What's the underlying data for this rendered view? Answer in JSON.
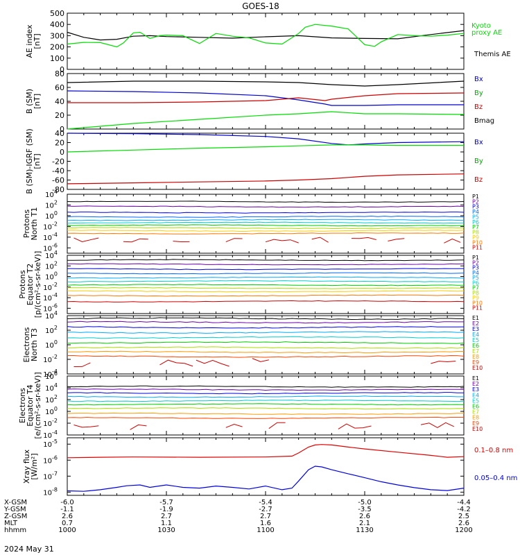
{
  "title": "GOES-18",
  "date_label": "2024 May 31",
  "ephemeris": {
    "row_labels": [
      "X-GSM",
      "Y-GSM",
      "Z-GSM",
      "MLT",
      "hhmm"
    ],
    "columns": [
      [
        "-6.0",
        "-1.1",
        "2.6",
        "0.7",
        "1000"
      ],
      [
        "-5.7",
        "-1.9",
        "2.7",
        "1.1",
        "1030"
      ],
      [
        "-5.4",
        "-2.7",
        "2.7",
        "1.6",
        "1100"
      ],
      [
        "-5.0",
        "-3.5",
        "2.6",
        "2.1",
        "1130"
      ],
      [
        "-4.4",
        "-4.2",
        "2.5",
        "2.6",
        "1200"
      ]
    ]
  },
  "chart_data": [
    {
      "type": "line",
      "id": "ae",
      "ylabel": [
        "AE index",
        "[nT]"
      ],
      "ylim": [
        0,
        500
      ],
      "ytick_labels": [
        "0",
        "100",
        "200",
        "300",
        "400",
        "500"
      ],
      "legend": [
        {
          "label": "Kyoto",
          "color": "#00dd00"
        },
        {
          "label": "proxy AE",
          "color": "#00dd00"
        },
        {
          "label": "Themis AE",
          "color": "#000000"
        }
      ],
      "series": [
        {
          "name": "Themis AE",
          "color": "#000000",
          "x": [
            0,
            5,
            10,
            15,
            20,
            25,
            30,
            40,
            50,
            60,
            70,
            80,
            90,
            100,
            110,
            120
          ],
          "y": [
            330,
            285,
            262,
            268,
            295,
            300,
            292,
            285,
            278,
            290,
            300,
            280,
            275,
            272,
            310,
            345
          ]
        },
        {
          "name": "Kyoto proxy AE",
          "color": "#00dd00",
          "x": [
            0,
            5,
            10,
            15,
            17,
            20,
            22,
            25,
            28,
            30,
            35,
            40,
            45,
            50,
            55,
            60,
            65,
            70,
            72,
            75,
            80,
            85,
            90,
            93,
            95,
            100,
            105,
            110,
            115,
            120
          ],
          "y": [
            225,
            240,
            238,
            200,
            235,
            325,
            330,
            275,
            300,
            305,
            300,
            230,
            320,
            295,
            280,
            235,
            225,
            320,
            375,
            400,
            385,
            360,
            220,
            205,
            245,
            310,
            300,
            295,
            305,
            320
          ]
        }
      ]
    },
    {
      "type": "line",
      "id": "bsm",
      "ylabel": [
        "B (SM)",
        "[nT]"
      ],
      "ylim": [
        0,
        80
      ],
      "ytick_labels": [
        "0",
        "20",
        "40",
        "60",
        "80"
      ],
      "legend": [
        {
          "label": "Bx",
          "color": "#0000cc"
        },
        {
          "label": "By",
          "color": "#00aa00"
        },
        {
          "label": "Bz",
          "color": "#cc0000"
        },
        {
          "label": "Bmag",
          "color": "#000000"
        }
      ],
      "series": [
        {
          "name": "Bmag",
          "color": "#000000",
          "x": [
            0,
            20,
            40,
            60,
            70,
            80,
            90,
            100,
            120
          ],
          "y": [
            67,
            69,
            69,
            68,
            67,
            64,
            62,
            64,
            69
          ]
        },
        {
          "name": "Bx",
          "color": "#0000cc",
          "x": [
            0,
            20,
            40,
            60,
            70,
            78,
            80,
            90,
            100,
            120
          ],
          "y": [
            55,
            54,
            52,
            48,
            42,
            36,
            34,
            34,
            35,
            35
          ]
        },
        {
          "name": "Bz",
          "color": "#cc0000",
          "x": [
            0,
            20,
            40,
            60,
            70,
            78,
            80,
            90,
            100,
            120
          ],
          "y": [
            38,
            38,
            39,
            41,
            45,
            41,
            43,
            48,
            51,
            52
          ]
        },
        {
          "name": "By",
          "color": "#00dd00",
          "x": [
            0,
            20,
            40,
            60,
            70,
            80,
            90,
            100,
            120
          ],
          "y": [
            0,
            8,
            14,
            20,
            22,
            25,
            22,
            22,
            21
          ]
        }
      ]
    },
    {
      "type": "line",
      "id": "bigrf",
      "ylabel": [
        "B (SM)-IGRF (SM)",
        "[nT]"
      ],
      "ylim": [
        -80,
        40
      ],
      "ytick_labels": [
        "-80",
        "-60",
        "-40",
        "-20",
        "0",
        "20",
        "40"
      ],
      "legend": [
        {
          "label": "Bx",
          "color": "#0000cc"
        },
        {
          "label": "By",
          "color": "#00aa00"
        },
        {
          "label": "Bz",
          "color": "#cc0000"
        }
      ],
      "series": [
        {
          "name": "Bx",
          "color": "#0000cc",
          "x": [
            0,
            20,
            40,
            60,
            70,
            80,
            85,
            90,
            100,
            120
          ],
          "y": [
            40,
            39,
            37,
            33,
            28,
            18,
            15,
            17,
            20,
            22
          ]
        },
        {
          "name": "By",
          "color": "#00dd00",
          "x": [
            0,
            20,
            40,
            60,
            70,
            80,
            90,
            100,
            120
          ],
          "y": [
            0,
            4,
            8,
            11,
            13,
            15,
            15,
            14,
            14
          ]
        },
        {
          "name": "Bz",
          "color": "#cc0000",
          "x": [
            0,
            20,
            40,
            60,
            70,
            80,
            90,
            100,
            120
          ],
          "y": [
            -68,
            -66,
            -64,
            -62,
            -60,
            -57,
            -52,
            -49,
            -47
          ]
        }
      ]
    },
    {
      "type": "line",
      "id": "protons_north",
      "log": true,
      "ylabel": [
        "Protons",
        "North T1"
      ],
      "ylim_exp": [
        -7,
        4
      ],
      "ytick_exps": [
        -6,
        -4,
        -2,
        0,
        2,
        4
      ],
      "legend": [
        {
          "label": "P1",
          "color": "#000000"
        },
        {
          "label": "P2",
          "color": "#6a00aa"
        },
        {
          "label": "P3",
          "color": "#0000dd"
        },
        {
          "label": "P4",
          "color": "#0066ff"
        },
        {
          "label": "P5",
          "color": "#00aaff"
        },
        {
          "label": "P6",
          "color": "#00cccc"
        },
        {
          "label": "P7",
          "color": "#00cc00"
        },
        {
          "label": "P8",
          "color": "#aadd00"
        },
        {
          "label": "P9",
          "color": "#ffcc00"
        },
        {
          "label": "P10",
          "color": "#ff7700"
        },
        {
          "label": "P11",
          "color": "#cc0000"
        }
      ],
      "series": [
        {
          "name": "P1",
          "color": "#000000",
          "level": 2.6
        },
        {
          "name": "P2",
          "color": "#6a00aa",
          "level": 1.7
        },
        {
          "name": "P3",
          "color": "#0000dd",
          "level": 0.6
        },
        {
          "name": "P4",
          "color": "#0066ff",
          "level": -0.2
        },
        {
          "name": "P5",
          "color": "#00aaff",
          "level": -0.8
        },
        {
          "name": "P6",
          "color": "#00cccc",
          "level": -1.3
        },
        {
          "name": "P7",
          "color": "#00cc00",
          "level": -1.8
        },
        {
          "name": "P8",
          "color": "#aadd00",
          "level": -2.3
        },
        {
          "name": "P9",
          "color": "#ffcc00",
          "level": -2.8
        },
        {
          "name": "P10",
          "color": "#ff7700",
          "level": -3.3
        },
        {
          "name": "P11",
          "color": "#cc0000",
          "level": -4.6,
          "sparse": true
        }
      ]
    },
    {
      "type": "line",
      "id": "protons_equator",
      "log": true,
      "ylabel": [
        "Protons",
        "Equator T2",
        "[p/(cm²-s-sr-keV)]"
      ],
      "ylim_exp": [
        -7,
        4
      ],
      "ytick_exps": [
        -6,
        -4,
        -2,
        0,
        2,
        4
      ],
      "legend": [
        {
          "label": "P1",
          "color": "#000000"
        },
        {
          "label": "P2",
          "color": "#6a00aa"
        },
        {
          "label": "P3",
          "color": "#0000dd"
        },
        {
          "label": "P4",
          "color": "#0066ff"
        },
        {
          "label": "P5",
          "color": "#00aaff"
        },
        {
          "label": "P6",
          "color": "#00cccc"
        },
        {
          "label": "P7",
          "color": "#00cc00"
        },
        {
          "label": "P8",
          "color": "#aadd00"
        },
        {
          "label": "P9",
          "color": "#ffcc00"
        },
        {
          "label": "P10",
          "color": "#ff7700"
        },
        {
          "label": "P11",
          "color": "#cc0000"
        }
      ],
      "series": [
        {
          "name": "P1",
          "color": "#000000",
          "level": 3.1
        },
        {
          "name": "P2",
          "color": "#6a00aa",
          "level": 2.3
        },
        {
          "name": "P3",
          "color": "#0000dd",
          "level": 1.4
        },
        {
          "name": "P4",
          "color": "#0066ff",
          "level": 0.6
        },
        {
          "name": "P5",
          "color": "#00aaff",
          "level": -0.2
        },
        {
          "name": "P6",
          "color": "#00cccc",
          "level": -0.9
        },
        {
          "name": "P7",
          "color": "#00cc00",
          "level": -1.6
        },
        {
          "name": "P8",
          "color": "#aadd00",
          "level": -2.2
        },
        {
          "name": "P9",
          "color": "#ffcc00",
          "level": -2.8
        },
        {
          "name": "P10",
          "color": "#ff7700",
          "level": -3.6
        },
        {
          "name": "P11",
          "color": "#cc0000",
          "level": -4.7
        }
      ]
    },
    {
      "type": "line",
      "id": "electrons_north",
      "log": true,
      "ylabel": [
        "Electrons",
        "North T3"
      ],
      "ylim_exp": [
        -4,
        4
      ],
      "ytick_exps": [
        -4,
        -2,
        0,
        2,
        4
      ],
      "legend": [
        {
          "label": "E1",
          "color": "#000000"
        },
        {
          "label": "E2",
          "color": "#6a00aa"
        },
        {
          "label": "E3",
          "color": "#0000dd"
        },
        {
          "label": "E4",
          "color": "#00aaff"
        },
        {
          "label": "E5",
          "color": "#00cccc"
        },
        {
          "label": "E6",
          "color": "#00cc00"
        },
        {
          "label": "E7",
          "color": "#aadd00"
        },
        {
          "label": "E8",
          "color": "#ff9900"
        },
        {
          "label": "E9",
          "color": "#ff4400"
        },
        {
          "label": "E10",
          "color": "#cc0000"
        }
      ],
      "series": [
        {
          "name": "E1",
          "color": "#000000",
          "level": 3.6
        },
        {
          "name": "E2",
          "color": "#6a00aa",
          "level": 3.1
        },
        {
          "name": "E3",
          "color": "#0000dd",
          "level": 2.4
        },
        {
          "name": "E4",
          "color": "#00aaff",
          "level": 1.7
        },
        {
          "name": "E5",
          "color": "#00cccc",
          "level": 1.0
        },
        {
          "name": "E6",
          "color": "#00cc00",
          "level": 0.3
        },
        {
          "name": "E7",
          "color": "#aadd00",
          "level": -0.4
        },
        {
          "name": "E8",
          "color": "#ff9900",
          "level": -1.0
        },
        {
          "name": "E9",
          "color": "#ff4400",
          "level": -1.6
        },
        {
          "name": "E10",
          "color": "#cc0000",
          "level": -2.4,
          "sparse": true
        }
      ]
    },
    {
      "type": "line",
      "id": "electrons_equator",
      "log": true,
      "ylabel": [
        "Electrons",
        "Equator T4",
        "[e/(cm²-s-sr-keV)]"
      ],
      "ylim_exp": [
        -4,
        6
      ],
      "ytick_exps": [
        -4,
        -2,
        0,
        2,
        4,
        6
      ],
      "legend": [
        {
          "label": "E1",
          "color": "#000000"
        },
        {
          "label": "E2",
          "color": "#6a00aa"
        },
        {
          "label": "E3",
          "color": "#0000dd"
        },
        {
          "label": "E4",
          "color": "#00aaff"
        },
        {
          "label": "E5",
          "color": "#00cccc"
        },
        {
          "label": "E6",
          "color": "#00cc00"
        },
        {
          "label": "E7",
          "color": "#aadd00"
        },
        {
          "label": "E8",
          "color": "#ff9900"
        },
        {
          "label": "E9",
          "color": "#ff4400"
        },
        {
          "label": "E10",
          "color": "#cc0000"
        }
      ],
      "series": [
        {
          "name": "E1",
          "color": "#000000",
          "level": 4.2
        },
        {
          "name": "E2",
          "color": "#6a00aa",
          "level": 3.7
        },
        {
          "name": "E3",
          "color": "#0000dd",
          "level": 3.1
        },
        {
          "name": "E4",
          "color": "#00aaff",
          "level": 2.5
        },
        {
          "name": "E5",
          "color": "#00cccc",
          "level": 1.8
        },
        {
          "name": "E6",
          "color": "#00cc00",
          "level": 1.2
        },
        {
          "name": "E7",
          "color": "#aadd00",
          "level": 0.5
        },
        {
          "name": "E8",
          "color": "#ff9900",
          "level": -0.4
        },
        {
          "name": "E9",
          "color": "#ff4400",
          "level": -1.1
        },
        {
          "name": "E10",
          "color": "#cc0000",
          "level": -2.5,
          "sparse": true
        }
      ]
    },
    {
      "type": "line",
      "id": "xray",
      "log": true,
      "ylabel": [
        "Xray flux",
        "[W/m²]"
      ],
      "ylim_exp": [
        -8.2,
        -4.6
      ],
      "ytick_exps": [
        -8,
        -7,
        -6,
        -5
      ],
      "legend": [
        {
          "label": "0.1–0.8 nm",
          "color": "#dd0000"
        },
        {
          "label": "0.05–0.4 nm",
          "color": "#0000dd"
        }
      ],
      "series": [
        {
          "name": "0.1–0.8 nm",
          "color": "#dd0000",
          "x": [
            0,
            10,
            20,
            40,
            60,
            68,
            70,
            73,
            75,
            77,
            80,
            85,
            90,
            100,
            110,
            115,
            120
          ],
          "y": [
            -5.85,
            -5.82,
            -5.8,
            -5.82,
            -5.8,
            -5.75,
            -5.55,
            -5.18,
            -5.05,
            -5.02,
            -5.05,
            -5.18,
            -5.3,
            -5.5,
            -5.7,
            -5.82,
            -5.78
          ]
        },
        {
          "name": "0.05–0.4 nm",
          "color": "#0000dd",
          "x": [
            0,
            5,
            10,
            15,
            18,
            22,
            25,
            30,
            35,
            40,
            45,
            50,
            55,
            60,
            65,
            68,
            70,
            73,
            75,
            77,
            80,
            85,
            90,
            95,
            100,
            105,
            110,
            115,
            120
          ],
          "y": [
            -7.92,
            -7.95,
            -7.85,
            -7.7,
            -7.6,
            -7.55,
            -7.7,
            -7.55,
            -7.7,
            -7.75,
            -7.62,
            -7.7,
            -7.8,
            -7.62,
            -7.85,
            -7.75,
            -7.3,
            -6.6,
            -6.38,
            -6.42,
            -6.6,
            -6.85,
            -7.1,
            -7.35,
            -7.55,
            -7.72,
            -7.85,
            -7.9,
            -7.75
          ]
        }
      ]
    }
  ]
}
